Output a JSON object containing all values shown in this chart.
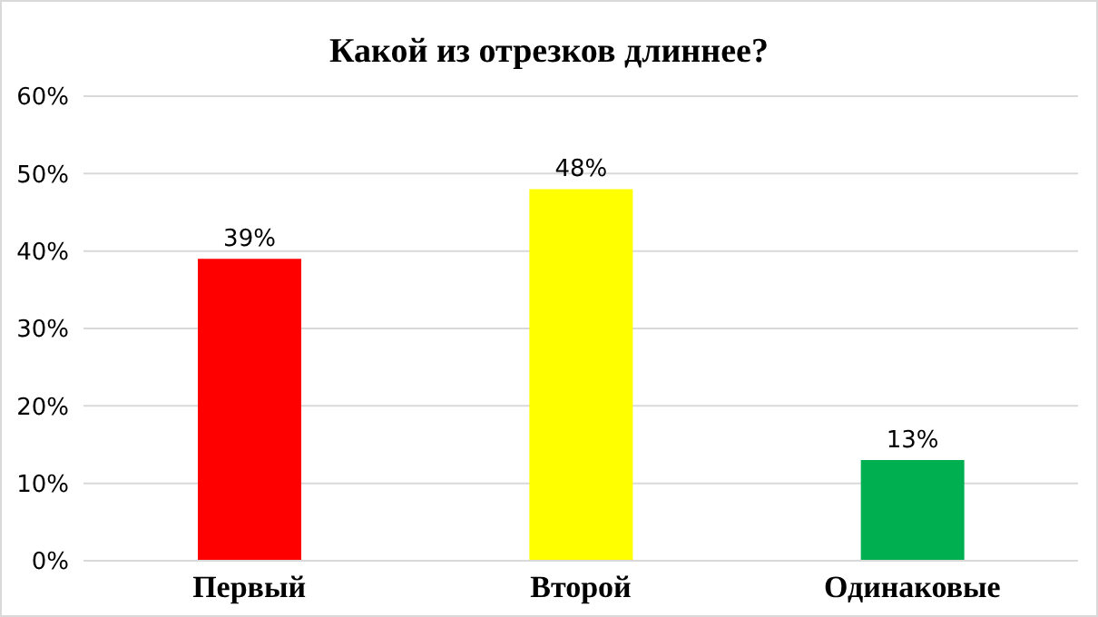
{
  "chart_data": {
    "type": "bar",
    "title": "Какой из отрезков длиннее?",
    "categories": [
      "Первый",
      "Второй",
      "Одинаковые"
    ],
    "values": [
      39,
      48,
      13
    ],
    "colors": [
      "#ff0000",
      "#ffff00",
      "#00b050"
    ],
    "value_labels": [
      "39%",
      "48%",
      "13%"
    ],
    "ylim": [
      0,
      60
    ],
    "yticks": [
      {
        "value": 0,
        "label": "0%"
      },
      {
        "value": 10,
        "label": "10%"
      },
      {
        "value": 20,
        "label": "20%"
      },
      {
        "value": 30,
        "label": "30%"
      },
      {
        "value": 40,
        "label": "40%"
      },
      {
        "value": 50,
        "label": "50%"
      },
      {
        "value": 60,
        "label": "60%"
      }
    ],
    "grid": "y",
    "legend": false
  }
}
